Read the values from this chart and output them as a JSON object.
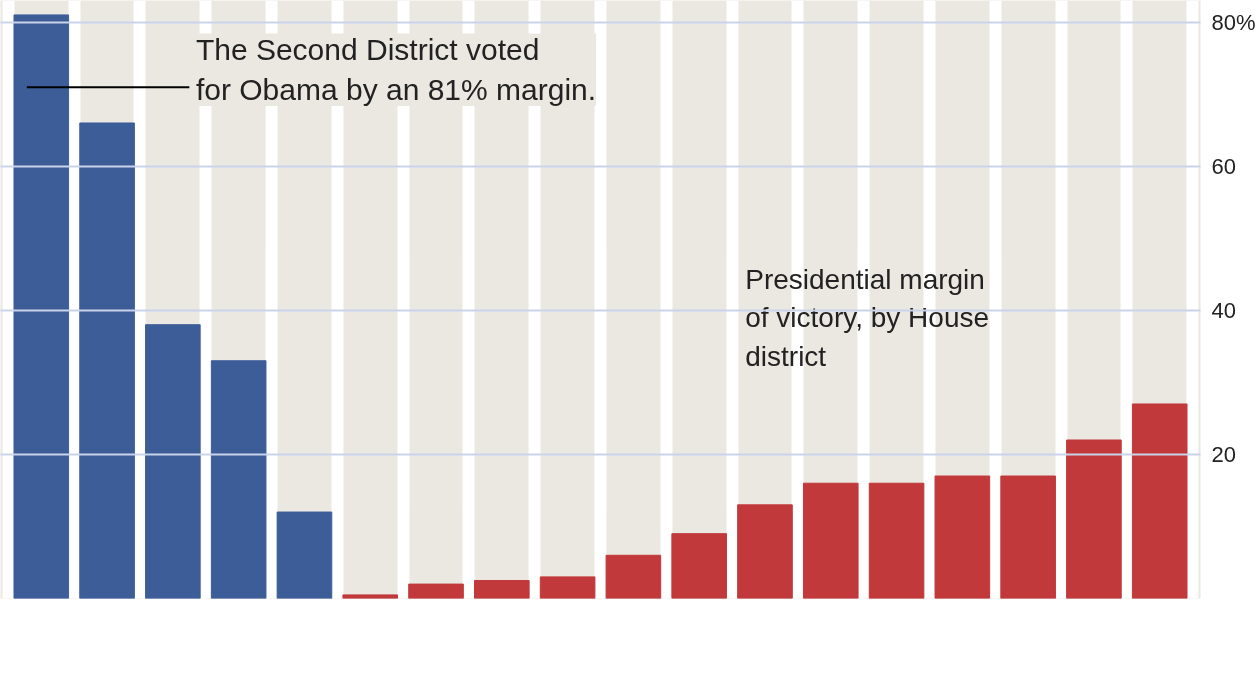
{
  "chart_data": {
    "type": "bar",
    "categories": [
      null,
      null,
      null,
      null,
      null,
      null,
      null,
      null,
      null,
      null,
      null,
      null,
      null,
      null,
      null,
      null,
      null,
      null
    ],
    "values": [
      81,
      66,
      38,
      33,
      12,
      0.5,
      2,
      2.5,
      3,
      6,
      9,
      13,
      16,
      16,
      17,
      17,
      22,
      27
    ],
    "colors": [
      "#3d5d98",
      "#3d5d98",
      "#3d5d98",
      "#3d5d98",
      "#3d5d98",
      "#c1393b",
      "#c1393b",
      "#c1393b",
      "#c1393b",
      "#c1393b",
      "#c1393b",
      "#c1393b",
      "#c1393b",
      "#c1393b",
      "#c1393b",
      "#c1393b",
      "#c1393b",
      "#c1393b"
    ],
    "ylim": [
      0,
      83
    ],
    "yticks": [
      {
        "value": 20,
        "label": "20"
      },
      {
        "value": 40,
        "label": "40"
      },
      {
        "value": 60,
        "label": "60"
      },
      {
        "value": 80,
        "label": "80%"
      }
    ],
    "grid": "y",
    "annotations": [
      "The Second District voted\nfor Obama by an 81% margin.",
      "Presidential margin\nof victory, by House\ndistrict"
    ]
  }
}
